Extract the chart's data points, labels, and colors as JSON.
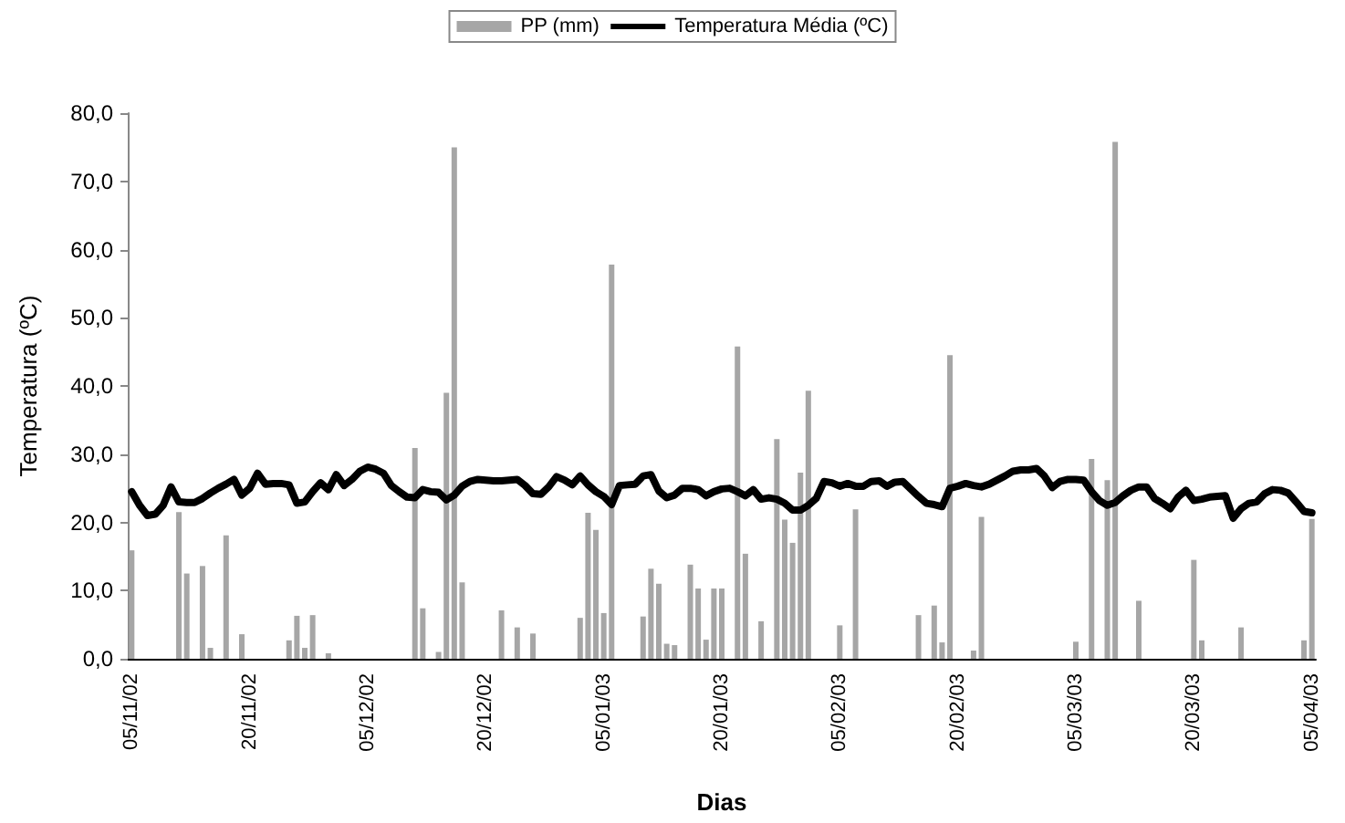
{
  "chart_data": {
    "type": "bar",
    "xlabel": "Dias",
    "ylabel": "Temperatura (ºC)",
    "categories": [
      "05/11/02",
      null,
      null,
      null,
      null,
      null,
      null,
      null,
      null,
      null,
      null,
      null,
      null,
      null,
      null,
      "20/11/02",
      null,
      null,
      null,
      null,
      null,
      null,
      null,
      null,
      null,
      null,
      null,
      null,
      null,
      null,
      "05/12/02",
      null,
      null,
      null,
      null,
      null,
      null,
      null,
      null,
      null,
      null,
      null,
      null,
      null,
      null,
      "20/12/02",
      null,
      null,
      null,
      null,
      null,
      null,
      null,
      null,
      null,
      null,
      null,
      null,
      null,
      null,
      "05/01/03",
      null,
      null,
      null,
      null,
      null,
      null,
      null,
      null,
      null,
      null,
      null,
      null,
      null,
      null,
      "20/01/03",
      null,
      null,
      null,
      null,
      null,
      null,
      null,
      null,
      null,
      null,
      null,
      null,
      null,
      null,
      "05/02/03",
      null,
      null,
      null,
      null,
      null,
      null,
      null,
      null,
      null,
      null,
      null,
      null,
      null,
      null,
      "20/02/03",
      null,
      null,
      null,
      null,
      null,
      null,
      null,
      null,
      null,
      null,
      null,
      null,
      null,
      null,
      "05/03/03",
      null,
      null,
      null,
      null,
      null,
      null,
      null,
      null,
      null,
      null,
      null,
      null,
      null,
      null,
      "20/03/03",
      null,
      null,
      null,
      null,
      null,
      null,
      null,
      null,
      null,
      null,
      null,
      null,
      null,
      null,
      "05/04/03"
    ],
    "series": [
      {
        "name": "PP (mm)",
        "color": "#a6a6a6",
        "values": [
          15.9,
          null,
          null,
          null,
          null,
          null,
          21.5,
          12.5,
          null,
          13.6,
          1.6,
          null,
          18.1,
          null,
          3.6,
          null,
          null,
          null,
          null,
          null,
          2.7,
          6.3,
          1.6,
          6.4,
          null,
          0.8,
          null,
          null,
          null,
          null,
          null,
          null,
          null,
          null,
          null,
          null,
          30.9,
          7.4,
          null,
          1.0,
          39.0,
          75.0,
          11.2,
          null,
          null,
          null,
          null,
          7.1,
          null,
          4.6,
          null,
          3.7,
          null,
          null,
          null,
          null,
          null,
          6.0,
          21.4,
          18.9,
          6.7,
          57.8,
          null,
          null,
          null,
          6.2,
          13.2,
          11.0,
          2.2,
          2.0,
          null,
          13.8,
          10.3,
          2.8,
          10.3,
          10.3,
          null,
          45.8,
          15.4,
          null,
          5.5,
          null,
          32.2,
          20.4,
          17.0,
          27.3,
          39.3,
          null,
          null,
          null,
          4.9,
          null,
          21.9,
          null,
          null,
          null,
          null,
          null,
          null,
          null,
          6.4,
          null,
          7.8,
          2.4,
          44.5,
          null,
          null,
          1.2,
          20.8,
          null,
          null,
          null,
          null,
          null,
          null,
          null,
          null,
          null,
          null,
          null,
          2.5,
          null,
          29.3,
          null,
          26.2,
          75.8,
          null,
          null,
          8.5,
          null,
          null,
          null,
          null,
          null,
          null,
          14.5,
          2.7,
          null,
          null,
          null,
          null,
          4.6,
          null,
          null,
          null,
          null,
          null,
          null,
          null,
          2.7,
          20.5
        ]
      },
      {
        "name": "Temperatura Média (ºC)",
        "type": "line",
        "color": "#000000",
        "values": [
          24.5,
          22.5,
          21.0,
          21.2,
          22.5,
          25.2,
          23.0,
          22.9,
          22.9,
          23.5,
          24.3,
          25.0,
          25.6,
          26.3,
          24.0,
          25.0,
          27.2,
          25.6,
          25.7,
          25.7,
          25.5,
          22.8,
          23.0,
          24.5,
          25.8,
          24.8,
          27.0,
          25.4,
          26.3,
          27.5,
          28.1,
          27.8,
          27.2,
          25.4,
          24.5,
          23.7,
          23.6,
          24.8,
          24.5,
          24.4,
          23.3,
          24.0,
          25.3,
          26.0,
          26.3,
          26.2,
          26.1,
          26.1,
          26.2,
          26.3,
          25.4,
          24.2,
          24.1,
          25.2,
          26.7,
          26.2,
          25.5,
          26.8,
          25.5,
          24.5,
          23.8,
          22.6,
          25.4,
          25.5,
          25.6,
          26.8,
          27.0,
          24.6,
          23.6,
          24.0,
          25.0,
          25.0,
          24.8,
          23.9,
          24.5,
          24.9,
          25.0,
          24.5,
          23.9,
          24.8,
          23.4,
          23.6,
          23.4,
          22.8,
          21.8,
          21.8,
          22.5,
          23.5,
          26.0,
          25.8,
          25.3,
          25.7,
          25.3,
          25.3,
          26.0,
          26.1,
          25.3,
          25.9,
          26.0,
          24.9,
          23.8,
          22.8,
          22.6,
          22.3,
          25.0,
          25.3,
          25.7,
          25.4,
          25.2,
          25.6,
          26.2,
          26.8,
          27.5,
          27.7,
          27.7,
          27.9,
          26.8,
          25.1,
          26.0,
          26.3,
          26.3,
          26.2,
          24.5,
          23.2,
          22.5,
          22.9,
          23.9,
          24.7,
          25.2,
          25.2,
          23.5,
          22.8,
          22.0,
          23.7,
          24.7,
          23.2,
          23.4,
          23.7,
          23.8,
          23.9,
          20.6,
          22.0,
          22.8,
          23.0,
          24.2,
          24.8,
          24.7,
          24.3,
          23.0,
          21.6,
          21.4
        ]
      }
    ],
    "ylim": [
      0,
      80
    ],
    "yticks": [
      {
        "value": 0,
        "label": "0,0"
      },
      {
        "value": 10,
        "label": "10,0"
      },
      {
        "value": 20,
        "label": "20,0"
      },
      {
        "value": 30,
        "label": "30,0"
      },
      {
        "value": 40,
        "label": "40,0"
      },
      {
        "value": 50,
        "label": "50,0"
      },
      {
        "value": 60,
        "label": "60,0"
      },
      {
        "value": 70,
        "label": "70,0"
      },
      {
        "value": 80,
        "label": "80,0"
      }
    ],
    "grid": false,
    "legend": "top"
  }
}
